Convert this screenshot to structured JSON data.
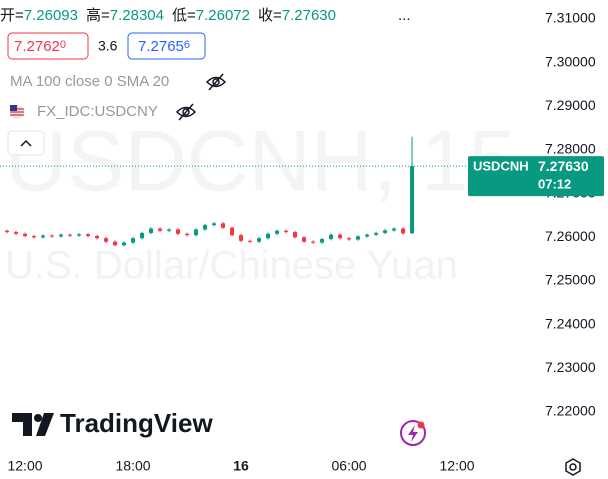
{
  "header": {
    "ohlc": [
      {
        "label": "开=",
        "value": "7.26093"
      },
      {
        "label": "高=",
        "value": "7.28304"
      },
      {
        "label": "低=",
        "value": "7.26072"
      },
      {
        "label": "收=",
        "value": "7.27630"
      }
    ],
    "more": "...",
    "bid": "7.2762",
    "bid_fraction": "0",
    "spread": "3.6",
    "ask": "7.2765",
    "ask_fraction": "6",
    "indicator": "MA 100 close 0 SMA 20",
    "compare_symbol": "FX_IDC:USDCNY",
    "watermark_symbol": "USDCNH, 15",
    "watermark_name": "U.S. Dollar/Chinese Yuan",
    "logo": "TradingView"
  },
  "chart_data": {
    "type": "candlestick",
    "x": [
      -1,
      -0.5,
      0,
      0.5,
      1,
      1.5,
      2,
      2.5,
      3,
      3.5,
      4,
      4.5,
      5,
      5.5,
      6,
      6.5,
      7,
      7.5,
      8,
      8.5,
      9,
      9.5,
      10,
      10.5,
      11,
      11.5,
      12,
      12.5,
      13,
      13.5,
      14,
      14.5,
      15,
      15.5,
      16,
      16.5,
      17,
      17.5,
      18,
      18.5,
      19,
      19.5,
      20,
      20.5,
      21,
      21.5
    ],
    "open": [
      7.2615,
      7.2612,
      7.2608,
      7.2603,
      7.26,
      7.2604,
      7.2602,
      7.2606,
      7.2604,
      7.2607,
      7.2603,
      7.2598,
      7.259,
      7.2582,
      7.2588,
      7.2598,
      7.261,
      7.262,
      7.2615,
      7.2618,
      7.2608,
      7.2605,
      7.2618,
      7.2628,
      7.2632,
      7.2622,
      7.2605,
      7.2592,
      7.259,
      7.2598,
      7.2608,
      7.2615,
      7.2612,
      7.26,
      7.259,
      7.2588,
      7.2596,
      7.2606,
      7.2598,
      7.2595,
      7.2602,
      7.2606,
      7.261,
      7.2616,
      7.262,
      7.26093
    ],
    "high": [
      7.2618,
      7.2615,
      7.2611,
      7.2606,
      7.2607,
      7.2607,
      7.2609,
      7.2609,
      7.261,
      7.261,
      7.2606,
      7.2601,
      7.2593,
      7.2591,
      7.2601,
      7.2613,
      7.2623,
      7.2623,
      7.2621,
      7.2621,
      7.2611,
      7.2621,
      7.2631,
      7.2635,
      7.2635,
      7.2625,
      7.2608,
      7.2595,
      7.2601,
      7.2611,
      7.2618,
      7.2618,
      7.2615,
      7.2603,
      7.2593,
      7.2599,
      7.2609,
      7.2609,
      7.2601,
      7.2605,
      7.2609,
      7.2613,
      7.2619,
      7.2623,
      7.2623,
      7.28304
    ],
    "low": [
      7.2609,
      7.2605,
      7.26,
      7.2597,
      7.2597,
      7.2599,
      7.2599,
      7.2601,
      7.2601,
      7.26,
      7.2595,
      7.2587,
      7.2579,
      7.2579,
      7.2585,
      7.2595,
      7.2607,
      7.2612,
      7.2612,
      7.2605,
      7.2602,
      7.2602,
      7.2615,
      7.2625,
      7.2619,
      7.2602,
      7.2589,
      7.2587,
      7.2587,
      7.2595,
      7.2605,
      7.2609,
      7.2597,
      7.2587,
      7.2585,
      7.2585,
      7.2593,
      7.2595,
      7.2592,
      7.2592,
      7.2599,
      7.2603,
      7.2607,
      7.2613,
      7.2606,
      7.26072
    ],
    "close": [
      7.2612,
      7.2608,
      7.2603,
      7.26,
      7.2604,
      7.2602,
      7.2606,
      7.2604,
      7.2607,
      7.2603,
      7.2598,
      7.259,
      7.2582,
      7.2588,
      7.2598,
      7.261,
      7.262,
      7.2615,
      7.2618,
      7.2608,
      7.2605,
      7.2618,
      7.2628,
      7.2632,
      7.2622,
      7.2605,
      7.2592,
      7.259,
      7.2598,
      7.2608,
      7.2615,
      7.2612,
      7.26,
      7.259,
      7.2588,
      7.2596,
      7.2606,
      7.2598,
      7.2595,
      7.2602,
      7.2606,
      7.261,
      7.2616,
      7.262,
      7.2609,
      7.2763
    ],
    "up_color": "#089981",
    "down_color": "#f23645",
    "xlim": [
      -1.39,
      28.33
    ],
    "xticks": [
      {
        "value": 0,
        "label": "12:00"
      },
      {
        "value": 6,
        "label": "18:00"
      },
      {
        "value": 12,
        "label": "16"
      },
      {
        "value": 18,
        "label": "06:00"
      },
      {
        "value": 24,
        "label": "12:00"
      }
    ],
    "ylim": [
      7.21015,
      7.31435
    ],
    "yticks": [
      {
        "value": 7.31,
        "label": "7.31000"
      },
      {
        "value": 7.3,
        "label": "7.30000"
      },
      {
        "value": 7.29,
        "label": "7.29000"
      },
      {
        "value": 7.28,
        "label": "7.28000"
      },
      {
        "value": 7.27,
        "label": "7.27000"
      },
      {
        "value": 7.26,
        "label": "7.26000"
      },
      {
        "value": 7.25,
        "label": "7.25000"
      },
      {
        "value": 7.24,
        "label": "7.24000"
      },
      {
        "value": 7.23,
        "label": "7.23000"
      },
      {
        "value": 7.22,
        "label": "7.22000"
      }
    ],
    "grid": false,
    "last_price": {
      "value": 7.2763,
      "label": "7.27630",
      "symbol": "USDCNH",
      "countdown": "07:12"
    }
  }
}
